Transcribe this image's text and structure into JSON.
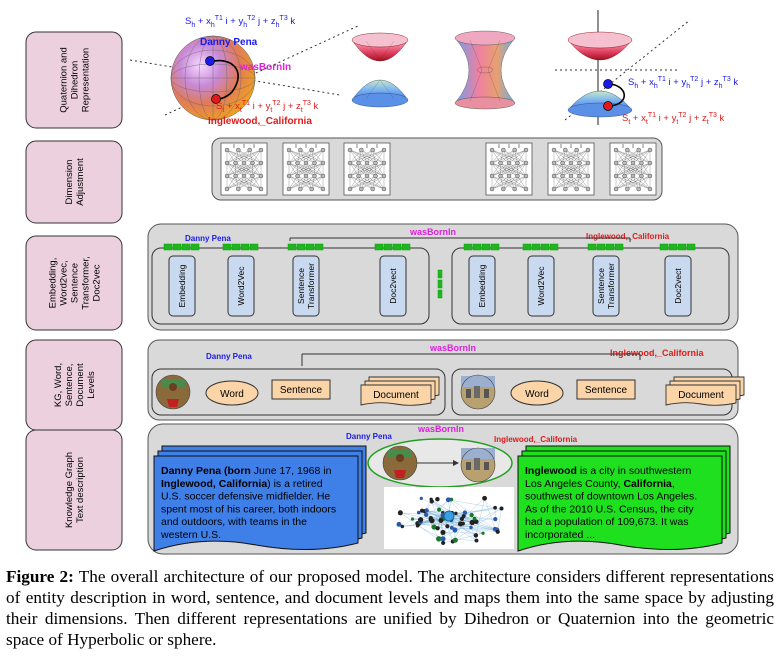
{
  "rows": [
    {
      "label": [
        "Quaternion and",
        "Dihedron",
        "Representation"
      ]
    },
    {
      "label": [
        "Dimension",
        "Adjustment"
      ]
    },
    {
      "label": [
        "Embedding,",
        "Word2vec,",
        "Sentence",
        "Transformer,",
        "Doc2vec"
      ]
    },
    {
      "label": [
        "KG, Word,",
        "Sentence,",
        "Document",
        "Levels"
      ]
    },
    {
      "label": [
        "Knowledge Graph",
        "Text description"
      ]
    }
  ],
  "entities": {
    "head": "Danny Pena",
    "relation": "wasBornIn",
    "tail": "Inglewood,_California"
  },
  "formulas": {
    "head": {
      "base": "S",
      "sub0": "h",
      "plus1": " + x",
      "sub1": "h",
      "sup1": "T1",
      "i": " i + y",
      "sub2": "h",
      "sup2": "T2",
      "j": " j + z",
      "sub3": "h",
      "sup3": "T3",
      "k": " k"
    },
    "tail": {
      "base": "S",
      "sub0": "t",
      "plus1": " + x",
      "sub1": "t",
      "sup1": "T1",
      "i": " i + y",
      "sub2": "t",
      "sup2": "T2",
      "j": " j + z",
      "sub3": "t",
      "sup3": "T3",
      "k": " k"
    }
  },
  "models": [
    "Embedding",
    "Word2Vec",
    "Sentence Transformer",
    "Doc2vect"
  ],
  "levels": {
    "word": "Word",
    "sentence": "Sentence",
    "document": "Document"
  },
  "descriptions": {
    "head": [
      [
        {
          "t": "Danny Pena",
          "b": true
        },
        {
          "t": " (born ",
          "b": true
        },
        {
          "t": "June 17, 1968 in",
          "b": false
        }
      ],
      [
        {
          "t": "Inglewood, California",
          "b": true
        },
        {
          "t": ") is a retired",
          "b": false
        }
      ],
      [
        {
          "t": "U.S. soccer defensive midfielder. He",
          "b": false
        }
      ],
      [
        {
          "t": "spent most of his career, both indoors",
          "b": false
        }
      ],
      [
        {
          "t": "and outdoors, with teams in the",
          "b": false
        }
      ],
      [
        {
          "t": "western U.S.",
          "b": false
        }
      ]
    ],
    "tail": [
      [
        {
          "t": "Inglewood",
          "b": true
        },
        {
          "t": " is a city in southwestern",
          "b": false
        }
      ],
      [
        {
          "t": "Los Angeles County, ",
          "b": false
        },
        {
          "t": "California",
          "b": true
        },
        {
          "t": ",",
          "b": false
        }
      ],
      [
        {
          "t": "southwest of downtown Los Angeles.",
          "b": false
        }
      ],
      [
        {
          "t": "As of the 2010 U.S. Census, the city",
          "b": false
        }
      ],
      [
        {
          "t": "had a population of 109,673. It was",
          "b": false
        }
      ],
      [
        {
          "t": "incorporated ...",
          "b": false
        }
      ]
    ]
  },
  "caption": {
    "label": "Figure 2:",
    "text": " The overall architecture of our proposed model. The architecture considers different representations of entity description in word, sentence, and document levels and maps them into the same space by adjusting their dimensions. Then different representations are unified by Dihedron or Quaternion into the geometric space of Hyperbolic or sphere."
  },
  "colors": {
    "label_fill": "#ecd0dd",
    "panel_fill": "#d9d9d9",
    "model_fill": "#c9d9ef",
    "level_fill": "#fbd4a8",
    "bar_green": "#22b322",
    "head_blue": "#1a1aee",
    "relation_magenta": "#e01ee0",
    "tail_red": "#e01a1a",
    "head_doc": "#3f7fe8",
    "tail_doc": "#1ee01e"
  },
  "icons": {
    "nn": "neural-network-icon",
    "person": "person-photo-icon",
    "city": "city-photo-icon",
    "graph": "knowledge-graph-icon"
  }
}
